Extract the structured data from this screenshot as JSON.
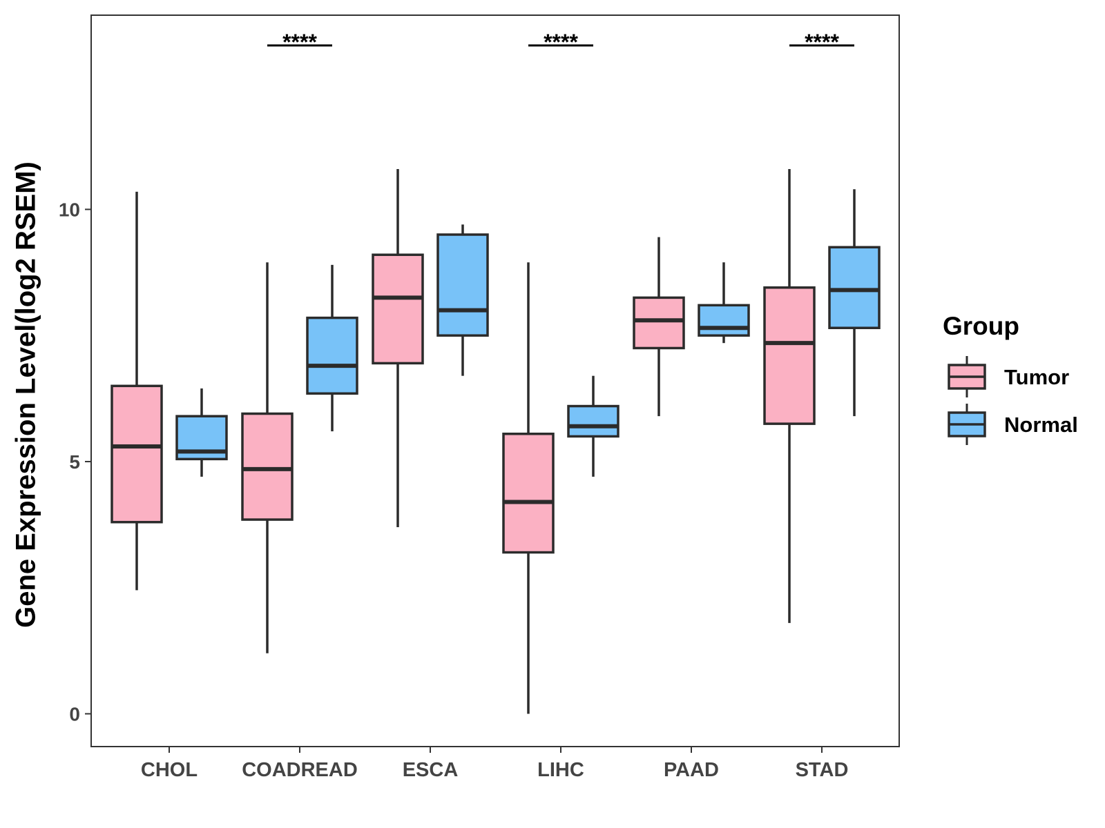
{
  "chart_data": {
    "type": "box",
    "ylabel": "Gene Expression Level(log2 RSEM)",
    "xlabel": "",
    "ylim": [
      -0.65,
      13.85
    ],
    "yticks": [
      0,
      5,
      10
    ],
    "categories": [
      "CHOL",
      "COADREAD",
      "ESCA",
      "LIHC",
      "PAAD",
      "STAD"
    ],
    "legend": {
      "title": "Group",
      "position": "right",
      "entries": [
        {
          "name": "Tumor",
          "color": "#fbb1c3"
        },
        {
          "name": "Normal",
          "color": "#78c2f8"
        }
      ]
    },
    "series": [
      {
        "name": "Tumor",
        "color": "#fbb1c3",
        "boxes": [
          {
            "category": "CHOL",
            "whisker_low": 2.45,
            "q1": 3.8,
            "median": 5.3,
            "q3": 6.5,
            "whisker_high": 10.35
          },
          {
            "category": "COADREAD",
            "whisker_low": 1.2,
            "q1": 3.85,
            "median": 4.85,
            "q3": 5.95,
            "whisker_high": 8.95
          },
          {
            "category": "ESCA",
            "whisker_low": 3.7,
            "q1": 6.95,
            "median": 8.25,
            "q3": 9.1,
            "whisker_high": 10.8
          },
          {
            "category": "LIHC",
            "whisker_low": 0.0,
            "q1": 3.2,
            "median": 4.2,
            "q3": 5.55,
            "whisker_high": 8.95
          },
          {
            "category": "PAAD",
            "whisker_low": 5.9,
            "q1": 7.25,
            "median": 7.8,
            "q3": 8.25,
            "whisker_high": 9.45
          },
          {
            "category": "STAD",
            "whisker_low": 1.8,
            "q1": 5.75,
            "median": 7.35,
            "q3": 8.45,
            "whisker_high": 10.8
          }
        ]
      },
      {
        "name": "Normal",
        "color": "#78c2f8",
        "boxes": [
          {
            "category": "CHOL",
            "whisker_low": 4.7,
            "q1": 5.05,
            "median": 5.2,
            "q3": 5.9,
            "whisker_high": 6.45
          },
          {
            "category": "COADREAD",
            "whisker_low": 5.6,
            "q1": 6.35,
            "median": 6.9,
            "q3": 7.85,
            "whisker_high": 8.9
          },
          {
            "category": "ESCA",
            "whisker_low": 6.7,
            "q1": 7.5,
            "median": 8.0,
            "q3": 9.5,
            "whisker_high": 9.7
          },
          {
            "category": "LIHC",
            "whisker_low": 4.7,
            "q1": 5.5,
            "median": 5.7,
            "q3": 6.1,
            "whisker_high": 6.7
          },
          {
            "category": "PAAD",
            "whisker_low": 7.35,
            "q1": 7.5,
            "median": 7.65,
            "q3": 8.1,
            "whisker_high": 8.95
          },
          {
            "category": "STAD",
            "whisker_low": 5.9,
            "q1": 7.65,
            "median": 8.4,
            "q3": 9.25,
            "whisker_high": 10.4
          }
        ]
      }
    ],
    "significance": [
      {
        "category": "COADREAD",
        "label": "****"
      },
      {
        "category": "LIHC",
        "label": "****"
      },
      {
        "category": "STAD",
        "label": "****"
      }
    ],
    "significance_y": 13.25
  }
}
